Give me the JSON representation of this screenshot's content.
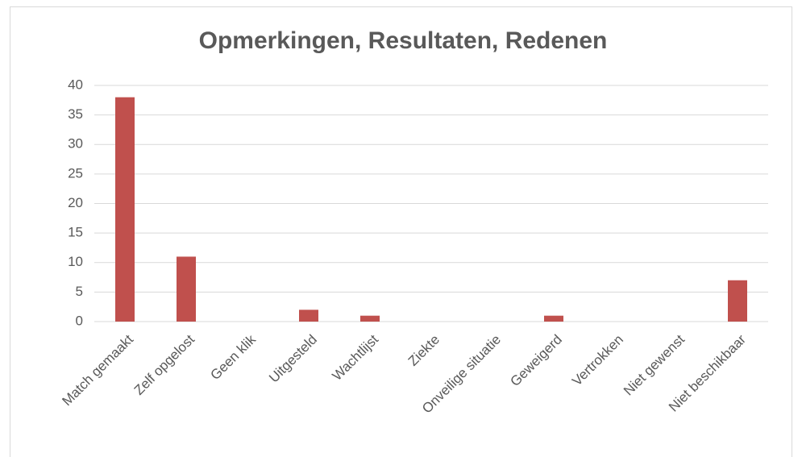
{
  "chart_data": {
    "type": "bar",
    "title": "Opmerkingen, Resultaten, Redenen",
    "categories": [
      "Match gemaakt",
      "Zelf opgelost",
      "Geen klik",
      "Uitgesteld",
      "Wachtlijst",
      "Ziekte",
      "Onveilige situatie",
      "Geweigerd",
      "Vertrokken",
      "Niet gewenst",
      "Niet beschikbaar"
    ],
    "values": [
      38,
      11,
      0,
      2,
      1,
      0,
      0,
      1,
      0,
      0,
      7
    ],
    "color": "#c0504d",
    "ylim": [
      0,
      40
    ],
    "yticks": [
      0,
      5,
      10,
      15,
      20,
      25,
      30,
      35,
      40
    ],
    "grid": true
  }
}
